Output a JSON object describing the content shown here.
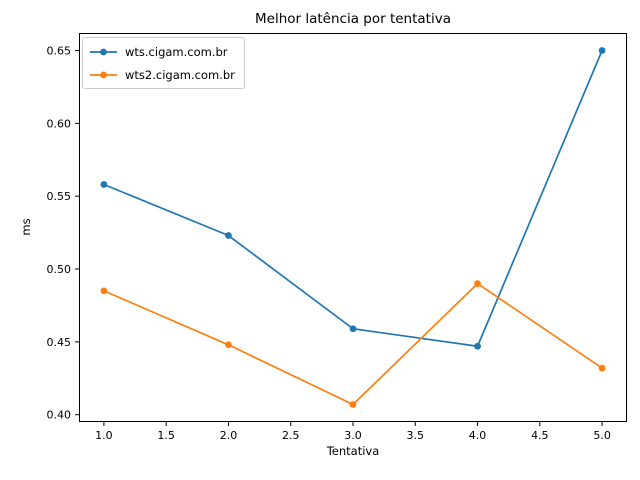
{
  "colors": {
    "figure_background": "#ffffff",
    "text": "#000000",
    "legend_border": "#cccccc",
    "axes_frame": "#000000"
  },
  "chart_data": {
    "type": "line",
    "title": "Melhor latência por tentativa",
    "xlabel": "Tentativa",
    "ylabel": "ms",
    "x": [
      1,
      2,
      3,
      4,
      5
    ],
    "series": [
      {
        "name": "wts.cigam.com.br",
        "color": "#1f77b4",
        "marker": "o",
        "values": [
          0.558,
          0.523,
          0.459,
          0.447,
          0.65
        ]
      },
      {
        "name": "wts2.cigam.com.br",
        "color": "#ff7f0e",
        "marker": "o",
        "values": [
          0.485,
          0.448,
          0.407,
          0.49,
          0.432
        ]
      }
    ],
    "xlim": [
      0.8,
      5.2
    ],
    "ylim": [
      0.395,
      0.662
    ],
    "xtick_values": [
      1.0,
      1.5,
      2.0,
      2.5,
      3.0,
      3.5,
      4.0,
      4.5,
      5.0
    ],
    "xtick_labels": [
      "1.0",
      "1.5",
      "2.0",
      "2.5",
      "3.0",
      "3.5",
      "4.0",
      "4.5",
      "5.0"
    ],
    "ytick_values": [
      0.4,
      0.45,
      0.5,
      0.55,
      0.6,
      0.65
    ],
    "ytick_labels": [
      "0.40",
      "0.45",
      "0.50",
      "0.55",
      "0.60",
      "0.65"
    ],
    "grid": false,
    "legend_position": "upper-left"
  }
}
